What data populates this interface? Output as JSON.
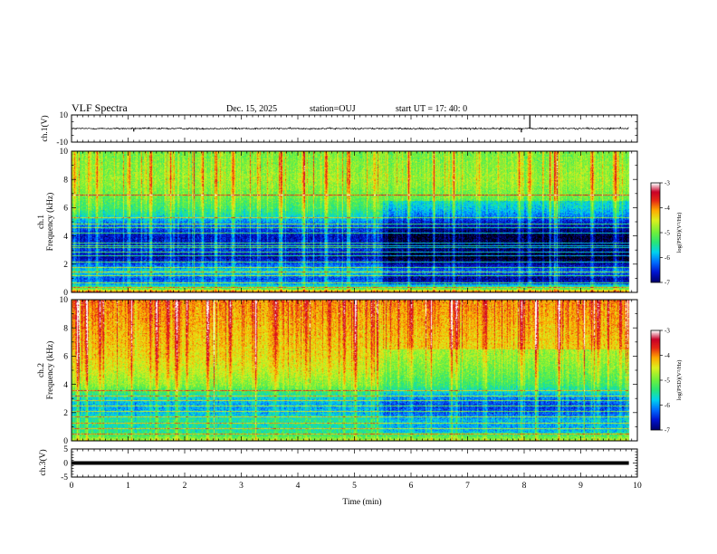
{
  "header": {
    "title": "VLF Spectra",
    "date": "Dec. 15, 2025",
    "station": "station=OUJ",
    "start": "start  UT  =   17: 40: 0"
  },
  "colors": {
    "ink": "#000000",
    "background": "#ffffff"
  },
  "chart_data": [
    {
      "type": "line",
      "name": "ch1-waveform",
      "ylabel": "ch.1(V)",
      "ylim": [
        -10,
        10
      ],
      "yticks": [
        -10,
        10
      ],
      "ytick_labels": [
        "-10",
        "10"
      ],
      "xlim": [
        0,
        10
      ],
      "baseline_v": 0,
      "description_values": {
        "spikes_min": [
          1.1,
          7.95,
          8.1,
          9.7
        ],
        "spike_amplitude_v": [
          -2.2,
          -2.8,
          9.5,
          1.2
        ]
      }
    },
    {
      "type": "heatmap",
      "name": "ch1-spectrogram",
      "ylabel": "ch.1\nFrequency (kHz)",
      "ylabel_lines": [
        "ch.1",
        "Frequency (kHz)"
      ],
      "ylim": [
        0,
        10
      ],
      "yticks": [
        0,
        2,
        4,
        6,
        8,
        10
      ],
      "ytick_labels": [
        "0",
        "2",
        "4",
        "6",
        "8",
        "10"
      ],
      "xlim": [
        0,
        10
      ],
      "colorbar": {
        "label": "log(PSD)(V²/Hz)",
        "range": [
          -7,
          -3
        ],
        "ticks": [
          -7,
          -6,
          -5,
          -4,
          -3
        ],
        "tick_labels": [
          "-7",
          "-6",
          "-5",
          "-4",
          "-3"
        ]
      },
      "profile_log_psd_by_khz": [
        [
          0.0,
          -3.6
        ],
        [
          0.3,
          -5.2
        ],
        [
          0.6,
          -6.0
        ],
        [
          1.0,
          -6.4
        ],
        [
          1.5,
          -5.7
        ],
        [
          2.0,
          -6.3
        ],
        [
          2.5,
          -6.8
        ],
        [
          3.0,
          -6.5
        ],
        [
          3.5,
          -6.6
        ],
        [
          4.0,
          -6.7
        ],
        [
          4.5,
          -6.4
        ],
        [
          5.0,
          -6.1
        ],
        [
          5.5,
          -5.6
        ],
        [
          6.0,
          -5.3
        ],
        [
          7.0,
          -5.0
        ],
        [
          8.0,
          -4.8
        ],
        [
          9.0,
          -4.9
        ],
        [
          10.0,
          -5.0
        ]
      ],
      "time_shift_min": 5.5,
      "time_shift_delta": -0.5,
      "hum_lines_khz": [
        0.4,
        0.7,
        1.2,
        1.5,
        1.8,
        2.15,
        2.6,
        2.9,
        3.2,
        3.35,
        3.5,
        4.2,
        4.6,
        4.9,
        5.3,
        6.9
      ],
      "vertical_bursts_min": [
        0.05,
        0.3,
        0.45,
        1.0,
        1.4,
        1.75,
        2.3,
        2.55,
        2.85,
        3.3,
        3.7,
        4.1,
        4.5,
        4.9,
        5.35,
        5.95,
        6.4,
        6.75,
        7.2,
        7.9,
        8.1,
        8.55,
        9.2,
        9.6
      ]
    },
    {
      "type": "heatmap",
      "name": "ch2-spectrogram",
      "ylabel": "ch.2\nFrequency (kHz)",
      "ylabel_lines": [
        "ch.2",
        "Frequency (kHz)"
      ],
      "ylim": [
        0,
        10
      ],
      "yticks": [
        0,
        2,
        4,
        6,
        8,
        10
      ],
      "ytick_labels": [
        "0",
        "2",
        "4",
        "6",
        "8",
        "10"
      ],
      "xlim": [
        0,
        10
      ],
      "colorbar": {
        "label": "log(PSD)(V²/Hz)",
        "range": [
          -7,
          -3
        ],
        "ticks": [
          -7,
          -6,
          -5,
          -4,
          -3
        ],
        "tick_labels": [
          "-7",
          "-6",
          "-5",
          "-4",
          "-3"
        ]
      },
      "profile_log_psd_by_khz": [
        [
          0.0,
          -4.6
        ],
        [
          0.5,
          -5.4
        ],
        [
          1.0,
          -5.6
        ],
        [
          1.5,
          -5.5
        ],
        [
          2.0,
          -5.9
        ],
        [
          2.5,
          -6.0
        ],
        [
          3.0,
          -5.8
        ],
        [
          3.5,
          -5.3
        ],
        [
          4.0,
          -4.9
        ],
        [
          5.0,
          -4.6
        ],
        [
          6.0,
          -4.4
        ],
        [
          7.0,
          -4.3
        ],
        [
          8.0,
          -4.2
        ],
        [
          9.0,
          -4.1
        ],
        [
          10.0,
          -4.0
        ]
      ],
      "time_shift_min": 5.5,
      "time_shift_delta": -0.4,
      "hum_lines_khz": [
        0.5,
        0.9,
        1.3,
        1.7,
        2.1,
        2.5,
        2.9,
        3.2,
        3.6
      ],
      "vertical_bursts_min": [
        0.1,
        0.25,
        0.5,
        1.05,
        1.5,
        1.7,
        1.85,
        2.4,
        2.8,
        3.25,
        3.6,
        4.15,
        4.55,
        5.0,
        5.3,
        6.0,
        6.35,
        6.7,
        6.8,
        7.3,
        7.95,
        8.2,
        8.6,
        9.3,
        9.7
      ]
    },
    {
      "type": "line",
      "name": "ch3-waveform",
      "ylabel": "ch.3(V)",
      "ylim": [
        -5,
        5
      ],
      "yticks": [
        -5,
        0,
        5
      ],
      "ytick_labels": [
        "-5",
        "0",
        "5"
      ],
      "xlim": [
        0,
        10
      ],
      "baseline_v": 0,
      "xlabel": "Time (min)",
      "xticks": [
        0,
        1,
        2,
        3,
        4,
        5,
        6,
        7,
        8,
        9,
        10
      ],
      "xtick_labels": [
        "0",
        "1",
        "2",
        "3",
        "4",
        "5",
        "6",
        "7",
        "8",
        "9",
        "10"
      ]
    }
  ],
  "data_end_min": 9.85
}
